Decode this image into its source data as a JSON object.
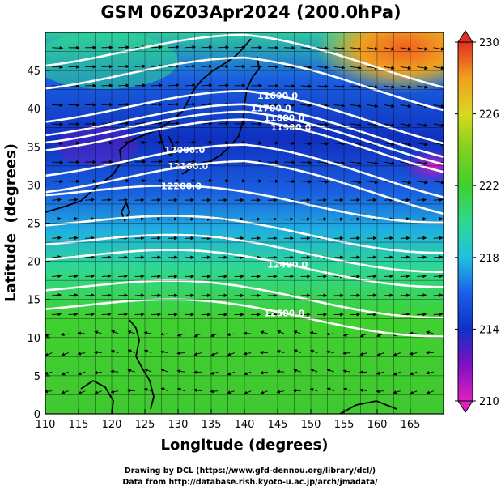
{
  "title": "GSM 06Z03Apr2024 (200.0hPa)",
  "chart_data": {
    "type": "heatmap",
    "title": "GSM 06Z03Apr2024 (200.0hPa)",
    "xlabel": "Longitude (degrees)",
    "ylabel": "Latitude  (degrees)",
    "xlim": [
      110,
      170
    ],
    "ylim": [
      0,
      50
    ],
    "x_ticks": [
      "110",
      "115",
      "120",
      "125",
      "130",
      "135",
      "140",
      "145",
      "150",
      "155",
      "160",
      "165"
    ],
    "y_ticks": [
      "0",
      "5",
      "10",
      "15",
      "20",
      "25",
      "30",
      "35",
      "40",
      "45"
    ],
    "grid": true,
    "colorbar": {
      "ticks": [
        "210",
        "214",
        "218",
        "222",
        "226",
        "230"
      ],
      "range": [
        210,
        230
      ],
      "colors": [
        "#e020c0",
        "#8010c0",
        "#1030c8",
        "#1a60e8",
        "#20c0e0",
        "#30d890",
        "#40d030",
        "#80d020",
        "#d8d820",
        "#f0a020",
        "#f06020",
        "#e03020"
      ]
    },
    "contours": [
      {
        "label": "11600.0",
        "lon": 145.0,
        "lat": 41.7
      },
      {
        "label": "11700.0",
        "lon": 144.0,
        "lat": 40.1
      },
      {
        "label": "11800.0",
        "lon": 146.0,
        "lat": 38.8
      },
      {
        "label": "11900.0",
        "lon": 147.0,
        "lat": 37.6
      },
      {
        "label": "12000.0",
        "lon": 131.0,
        "lat": 34.6
      },
      {
        "label": "12100.0",
        "lon": 131.5,
        "lat": 32.5
      },
      {
        "label": "12200.0",
        "lon": 130.5,
        "lat": 29.9
      },
      {
        "label": "12400.0",
        "lon": 146.5,
        "lat": 19.6
      },
      {
        "label": "12500.0",
        "lon": 146.0,
        "lat": 13.2
      }
    ]
  },
  "credits": [
    "Drawing by DCL (https://www.gfd-dennou.org/library/dcl/)",
    "Data from http://database.rish.kyoto-u.ac.jp/arch/jmadata/"
  ]
}
